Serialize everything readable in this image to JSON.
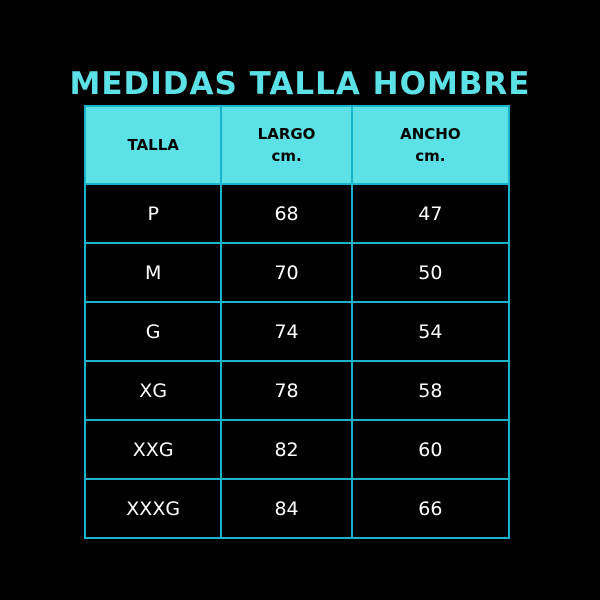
{
  "title": "MEDIDAS TALLA HOMBRE",
  "colors": {
    "accent": "#5ce1e6",
    "border": "#1ab3cc",
    "background": "#000000"
  },
  "headers": [
    {
      "line1": "TALLA",
      "line2": ""
    },
    {
      "line1": "LARGO",
      "line2": "cm."
    },
    {
      "line1": "ANCHO",
      "line2": "cm."
    }
  ],
  "rows": [
    [
      "P",
      "68",
      "47"
    ],
    [
      "M",
      "70",
      "50"
    ],
    [
      "G",
      "74",
      "54"
    ],
    [
      "XG",
      "78",
      "58"
    ],
    [
      "XXG",
      "82",
      "60"
    ],
    [
      "XXXG",
      "84",
      "66"
    ]
  ]
}
